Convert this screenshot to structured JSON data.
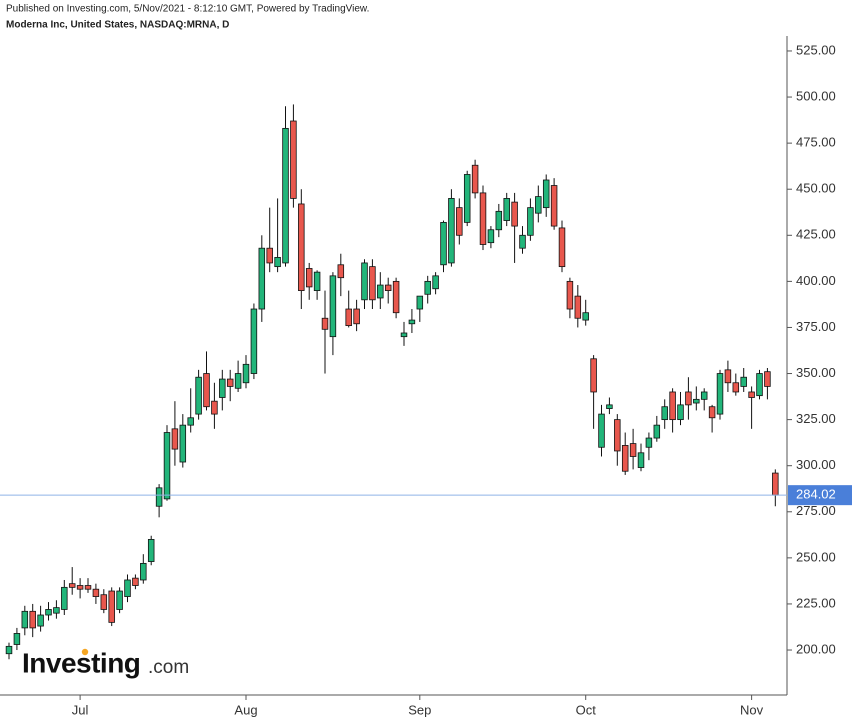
{
  "header": {
    "published": "Published on Investing.com, 5/Nov/2021 - 8:12:10 GMT, Powered by TradingView.",
    "symbol": "Moderna Inc, United States, NASDAQ:MRNA, D"
  },
  "logo": {
    "name": "Investing",
    "suffix": ".com"
  },
  "chart_data": {
    "type": "candlestick",
    "up_color": "#22b57a",
    "down_color": "#e8574d",
    "last_line_color": "#8fb3e6",
    "last_label_color": "#4a7fd9",
    "xlim": [
      -1.14,
      98.48
    ],
    "xticks": [
      {
        "value": 9,
        "label": "Jul"
      },
      {
        "value": 30,
        "label": "Aug"
      },
      {
        "value": 52,
        "label": "Sep"
      },
      {
        "value": 73,
        "label": "Oct"
      },
      {
        "value": 94,
        "label": "Nov"
      }
    ],
    "ylim": [
      175.6,
      541.8
    ],
    "yticks": [
      {
        "value": 200,
        "label": "200.00"
      },
      {
        "value": 225,
        "label": "225.00"
      },
      {
        "value": 250,
        "label": "250.00"
      },
      {
        "value": 275,
        "label": "275.00"
      },
      {
        "value": 300,
        "label": "300.00"
      },
      {
        "value": 325,
        "label": "325.00"
      },
      {
        "value": 350,
        "label": "350.00"
      },
      {
        "value": 375,
        "label": "375.00"
      },
      {
        "value": 400,
        "label": "400.00"
      },
      {
        "value": 425,
        "label": "425.00"
      },
      {
        "value": 450,
        "label": "450.00"
      },
      {
        "value": 475,
        "label": "475.00"
      },
      {
        "value": 500,
        "label": "500.00"
      },
      {
        "value": 525,
        "label": "525.00"
      }
    ],
    "open": [
      198,
      203,
      212,
      221,
      213,
      219,
      220,
      222,
      236,
      235,
      235,
      233,
      230,
      232,
      222,
      229,
      239,
      238,
      248,
      278,
      282,
      320,
      302,
      322,
      328,
      350,
      335,
      337,
      347,
      342,
      345,
      350,
      385,
      418,
      408,
      410,
      487,
      442,
      407,
      395,
      380,
      370,
      409,
      385,
      385,
      390,
      408,
      391,
      398,
      400,
      370,
      377,
      385,
      393,
      396,
      409,
      410,
      440,
      432,
      463,
      448,
      421,
      428,
      433,
      443,
      418,
      425,
      437,
      440,
      452,
      429,
      400,
      392,
      379,
      358,
      310,
      331,
      325,
      311,
      312,
      299,
      310,
      315,
      325,
      340,
      325,
      340,
      334,
      336,
      332,
      328,
      352,
      345,
      343,
      340,
      338,
      351,
      296
    ],
    "high": [
      204,
      212,
      224,
      225,
      224,
      226,
      227,
      238,
      245,
      239,
      239,
      236,
      233,
      234,
      234,
      241,
      241,
      252,
      262,
      290,
      322,
      335,
      328,
      342,
      352,
      362,
      345,
      352,
      352,
      357,
      360,
      388,
      425,
      440,
      445,
      495,
      496,
      450,
      410,
      406,
      395,
      405,
      415,
      395,
      390,
      412,
      412,
      405,
      402,
      402,
      378,
      385,
      392,
      403,
      405,
      433,
      450,
      445,
      460,
      466,
      452,
      430,
      442,
      448,
      448,
      430,
      445,
      452,
      458,
      456,
      433,
      402,
      398,
      390,
      360,
      333,
      337,
      328,
      318,
      320,
      312,
      318,
      327,
      336,
      342,
      340,
      348,
      343,
      342,
      333,
      352,
      357,
      350,
      353,
      343,
      352,
      353,
      298
    ],
    "low": [
      195,
      200,
      208,
      207,
      210,
      216,
      217,
      219,
      230,
      228,
      231,
      225,
      220,
      213,
      220,
      226,
      233,
      236,
      246,
      272,
      281,
      300,
      299,
      318,
      325,
      330,
      320,
      330,
      335,
      340,
      342,
      347,
      378,
      405,
      405,
      408,
      440,
      385,
      390,
      390,
      350,
      360,
      392,
      375,
      373,
      385,
      385,
      385,
      388,
      380,
      365,
      372,
      378,
      388,
      393,
      405,
      408,
      420,
      430,
      445,
      417,
      418,
      424,
      430,
      410,
      415,
      422,
      432,
      435,
      428,
      405,
      380,
      375,
      376,
      320,
      305,
      328,
      300,
      295,
      298,
      297,
      303,
      313,
      320,
      318,
      322,
      325,
      330,
      330,
      318,
      325,
      340,
      338,
      340,
      320,
      336,
      336,
      278
    ],
    "close": [
      202,
      209,
      221,
      212,
      219,
      222,
      223,
      234,
      234,
      233,
      233,
      229,
      222,
      215,
      232,
      238,
      235,
      247,
      260,
      288,
      318,
      309,
      322,
      326,
      348,
      332,
      328,
      347,
      343,
      350,
      355,
      385,
      418,
      410,
      413,
      483,
      445,
      395,
      397,
      405,
      374,
      403,
      402,
      376,
      377,
      410,
      390,
      398,
      395,
      383,
      372,
      379,
      392,
      400,
      403,
      432,
      445,
      425,
      458,
      448,
      420,
      428,
      438,
      445,
      430,
      425,
      440,
      446,
      455,
      430,
      408,
      385,
      380,
      383,
      340,
      328,
      333,
      308,
      297,
      305,
      307,
      315,
      322,
      332,
      325,
      333,
      333,
      336,
      340,
      326,
      350,
      345,
      340,
      348,
      337,
      350,
      343,
      284.02
    ],
    "last_price_label": "284.02"
  }
}
